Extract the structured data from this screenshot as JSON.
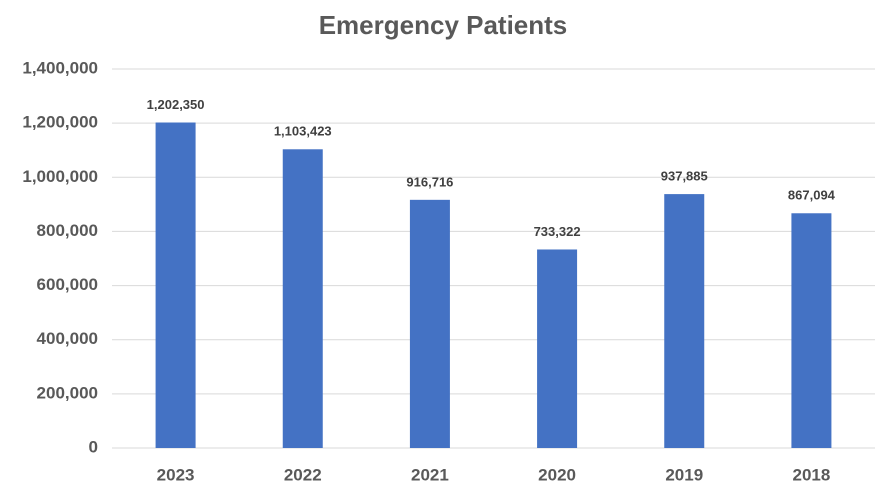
{
  "chart_data": {
    "type": "bar",
    "title": "Emergency Patients",
    "categories": [
      "2023",
      "2022",
      "2021",
      "2020",
      "2019",
      "2018"
    ],
    "values": [
      1202350,
      1103423,
      916716,
      733322,
      937885,
      867094
    ],
    "value_labels": [
      "1,202,350",
      "1,103,423",
      "916,716",
      "733,322",
      "937,885",
      "867,094"
    ],
    "color": "#4472c4",
    "ylim": [
      0,
      1400000
    ],
    "yticks": [
      0,
      {
        "value": 200000,
        "label": "200,000"
      },
      {
        "value": 400000,
        "label": "400,000"
      },
      {
        "value": 600000,
        "label": "600,000"
      },
      {
        "value": 800000,
        "label": "800,000"
      },
      {
        "value": 1000000,
        "label": "1,000,000"
      },
      {
        "value": 1200000,
        "label": "1,200,000"
      },
      {
        "value": 1400000,
        "label": "1,400,000"
      }
    ],
    "grid": true
  }
}
